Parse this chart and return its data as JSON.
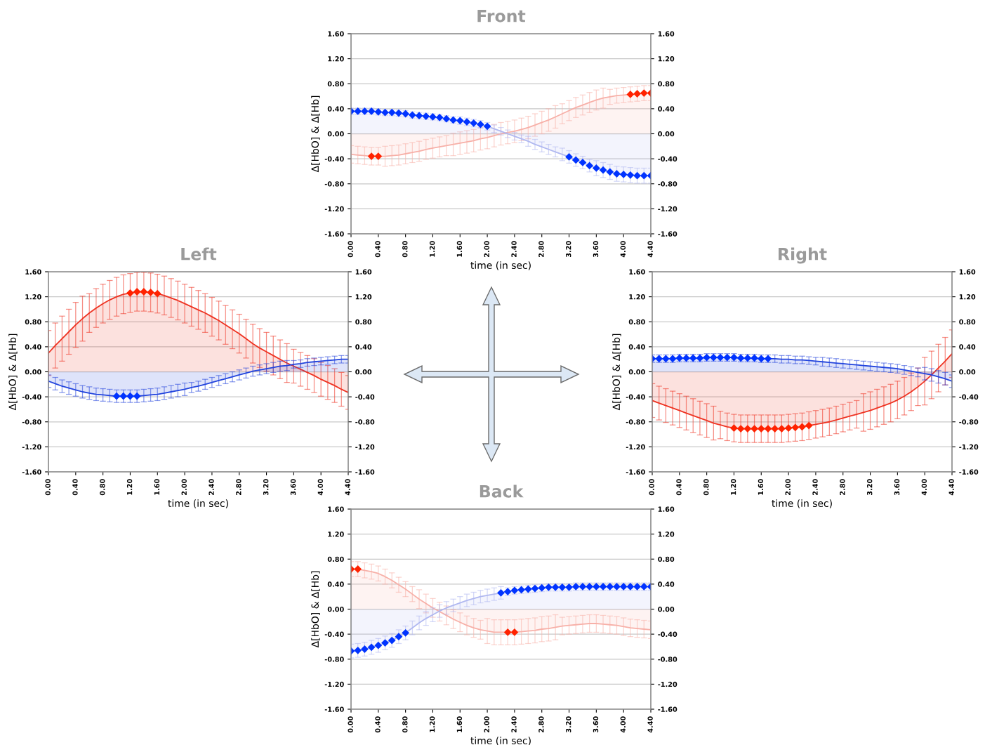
{
  "chart_data": [
    {
      "type": "line",
      "title": "Front",
      "xlabel": "time (in sec)",
      "ylabel": "Δ[HbO] & Δ[Hb]",
      "grid": "y",
      "xlim": [
        0,
        4.4
      ],
      "ylim": [
        -1.6,
        1.6
      ],
      "y2lim": [
        -1.6,
        1.6
      ],
      "xticks": [
        {
          "value": 0,
          "label": "0.00"
        },
        {
          "value": 0.4,
          "label": "0.40"
        },
        {
          "value": 0.8,
          "label": "0.80"
        },
        {
          "value": 1.2,
          "label": "1.20"
        },
        {
          "value": 1.6,
          "label": "1.60"
        },
        {
          "value": 2.0,
          "label": "2.00"
        },
        {
          "value": 2.4,
          "label": "2.40"
        },
        {
          "value": 2.8,
          "label": "2.80"
        },
        {
          "value": 3.2,
          "label": "3.20"
        },
        {
          "value": 3.6,
          "label": "3.60"
        },
        {
          "value": 4.0,
          "label": "4.00"
        },
        {
          "value": 4.4,
          "label": "4.40"
        }
      ],
      "yticks": [
        {
          "value": -1.6,
          "label": "-1.60"
        },
        {
          "value": -1.2,
          "label": "-1.20"
        },
        {
          "value": -0.8,
          "label": "-0.80"
        },
        {
          "value": -0.4,
          "label": "-0.40"
        },
        {
          "value": 0,
          "label": "0.00"
        },
        {
          "value": 0.4,
          "label": "0.40"
        },
        {
          "value": 0.8,
          "label": "0.80"
        },
        {
          "value": 1.2,
          "label": "1.20"
        },
        {
          "value": 1.6,
          "label": "1.60"
        }
      ],
      "y2ticks": [
        {
          "value": -1.6,
          "label": "-1.60"
        },
        {
          "value": -1.2,
          "label": "-1.20"
        },
        {
          "value": -0.8,
          "label": "-0.80"
        },
        {
          "value": -0.4,
          "label": "-0.40"
        },
        {
          "value": 0,
          "label": "0.00"
        },
        {
          "value": 0.4,
          "label": "0.40"
        },
        {
          "value": 0.8,
          "label": "0.80"
        },
        {
          "value": 1.2,
          "label": "1.20"
        },
        {
          "value": 1.6,
          "label": "1.60"
        }
      ],
      "x": [
        0,
        0.1,
        0.2,
        0.3,
        0.4,
        0.5,
        0.6,
        0.7,
        0.8,
        0.9,
        1.0,
        1.1,
        1.2,
        1.3,
        1.4,
        1.5,
        1.6,
        1.7,
        1.8,
        1.9,
        2.0,
        2.1,
        2.2,
        2.3,
        2.4,
        2.5,
        2.6,
        2.7,
        2.8,
        2.9,
        3.0,
        3.1,
        3.2,
        3.3,
        3.4,
        3.5,
        3.6,
        3.7,
        3.8,
        3.9,
        4.0,
        4.1,
        4.2,
        4.3,
        4.4
      ],
      "series": [
        {
          "type": "area",
          "color": "#f7b0a8",
          "values": [
            -0.33,
            -0.34,
            -0.35,
            -0.36,
            -0.36,
            -0.36,
            -0.35,
            -0.34,
            -0.32,
            -0.3,
            -0.28,
            -0.25,
            -0.23,
            -0.21,
            -0.19,
            -0.17,
            -0.15,
            -0.13,
            -0.11,
            -0.08,
            -0.06,
            -0.03,
            0.0,
            0.02,
            0.04,
            0.07,
            0.1,
            0.14,
            0.18,
            0.22,
            0.27,
            0.32,
            0.37,
            0.42,
            0.46,
            0.5,
            0.54,
            0.57,
            0.59,
            0.61,
            0.62,
            0.63,
            0.64,
            0.65,
            0.65
          ],
          "errors": [
            0.14,
            0.14,
            0.14,
            0.14,
            0.14,
            0.16,
            0.16,
            0.16,
            0.16,
            0.16,
            0.16,
            0.16,
            0.16,
            0.16,
            0.16,
            0.18,
            0.18,
            0.18,
            0.18,
            0.18,
            0.18,
            0.18,
            0.18,
            0.18,
            0.18,
            0.18,
            0.18,
            0.18,
            0.18,
            0.18,
            0.18,
            0.16,
            0.16,
            0.16,
            0.16,
            0.16,
            0.16,
            0.16,
            0.12,
            0.12,
            0.12,
            0.12,
            0.12,
            0.12,
            0.12
          ]
        },
        {
          "type": "area",
          "color": "#b0b8f0",
          "values": [
            0.36,
            0.36,
            0.36,
            0.36,
            0.35,
            0.34,
            0.34,
            0.33,
            0.32,
            0.3,
            0.29,
            0.28,
            0.27,
            0.26,
            0.24,
            0.22,
            0.21,
            0.19,
            0.17,
            0.15,
            0.12,
            0.08,
            0.04,
            0.0,
            -0.04,
            -0.08,
            -0.12,
            -0.17,
            -0.21,
            -0.25,
            -0.29,
            -0.33,
            -0.37,
            -0.42,
            -0.46,
            -0.51,
            -0.55,
            -0.58,
            -0.61,
            -0.64,
            -0.65,
            -0.66,
            -0.67,
            -0.67,
            -0.67
          ],
          "errors": [
            0.05,
            0.05,
            0.05,
            0.05,
            0.05,
            0.05,
            0.05,
            0.05,
            0.05,
            0.05,
            0.05,
            0.05,
            0.05,
            0.05,
            0.05,
            0.05,
            0.06,
            0.06,
            0.06,
            0.06,
            0.06,
            0.06,
            0.06,
            0.06,
            0.06,
            0.06,
            0.08,
            0.08,
            0.08,
            0.08,
            0.08,
            0.1,
            0.1,
            0.1,
            0.1,
            0.1,
            0.12,
            0.12,
            0.12,
            0.12,
            0.12,
            0.12,
            0.12,
            0.12,
            0.12
          ]
        },
        {
          "type": "scatter",
          "marker": "diamond",
          "color": "#ff2200",
          "x": [
            0.3,
            0.4,
            4.1,
            4.2,
            4.3,
            4.4
          ],
          "values": [
            -0.36,
            -0.36,
            0.63,
            0.64,
            0.65,
            0.65
          ]
        },
        {
          "type": "scatter",
          "marker": "diamond",
          "color": "#0033ff",
          "x": [
            0,
            0.1,
            0.2,
            0.3,
            0.4,
            0.5,
            0.6,
            0.7,
            0.8,
            0.9,
            1.0,
            1.1,
            1.2,
            1.3,
            1.4,
            1.5,
            1.6,
            1.7,
            1.8,
            1.9,
            2.0,
            3.2,
            3.3,
            3.4,
            3.5,
            3.6,
            3.7,
            3.8,
            3.9,
            4.0,
            4.1,
            4.2,
            4.3,
            4.4
          ],
          "values": [
            0.36,
            0.36,
            0.36,
            0.36,
            0.35,
            0.34,
            0.34,
            0.33,
            0.32,
            0.3,
            0.29,
            0.28,
            0.27,
            0.26,
            0.24,
            0.22,
            0.21,
            0.19,
            0.17,
            0.15,
            0.12,
            -0.37,
            -0.42,
            -0.46,
            -0.51,
            -0.55,
            -0.58,
            -0.61,
            -0.64,
            -0.65,
            -0.66,
            -0.67,
            -0.67,
            -0.67
          ]
        }
      ]
    },
    {
      "type": "line",
      "title": "Left",
      "xlabel": "time (in sec)",
      "ylabel": "Δ[HbO] & Δ[Hb]",
      "grid": "y",
      "xlim": [
        0,
        4.4
      ],
      "ylim": [
        -1.6,
        1.6
      ],
      "y2lim": [
        -1.6,
        1.6
      ],
      "xticks": [
        {
          "value": 0,
          "label": "0.00"
        },
        {
          "value": 0.4,
          "label": "0.40"
        },
        {
          "value": 0.8,
          "label": "0.80"
        },
        {
          "value": 1.2,
          "label": "1.20"
        },
        {
          "value": 1.6,
          "label": "1.60"
        },
        {
          "value": 2.0,
          "label": "2.00"
        },
        {
          "value": 2.4,
          "label": "2.40"
        },
        {
          "value": 2.8,
          "label": "2.80"
        },
        {
          "value": 3.2,
          "label": "3.20"
        },
        {
          "value": 3.6,
          "label": "3.60"
        },
        {
          "value": 4.0,
          "label": "4.00"
        },
        {
          "value": 4.4,
          "label": "4.40"
        }
      ],
      "yticks": [
        {
          "value": -1.6,
          "label": "-1.60"
        },
        {
          "value": -1.2,
          "label": "-1.20"
        },
        {
          "value": -0.8,
          "label": "-0.80"
        },
        {
          "value": -0.4,
          "label": "-0.40"
        },
        {
          "value": 0,
          "label": "0.00"
        },
        {
          "value": 0.4,
          "label": "0.40"
        },
        {
          "value": 0.8,
          "label": "0.80"
        },
        {
          "value": 1.2,
          "label": "1.20"
        },
        {
          "value": 1.6,
          "label": "1.60"
        }
      ],
      "y2ticks": [
        {
          "value": -1.6,
          "label": "-1.60"
        },
        {
          "value": -1.2,
          "label": "-1.20"
        },
        {
          "value": -0.8,
          "label": "-0.80"
        },
        {
          "value": -0.4,
          "label": "-0.40"
        },
        {
          "value": 0,
          "label": "0.00"
        },
        {
          "value": 0.4,
          "label": "0.40"
        },
        {
          "value": 0.8,
          "label": "0.80"
        },
        {
          "value": 1.2,
          "label": "1.20"
        },
        {
          "value": 1.6,
          "label": "1.60"
        }
      ],
      "x": [
        0,
        0.1,
        0.2,
        0.3,
        0.4,
        0.5,
        0.6,
        0.7,
        0.8,
        0.9,
        1.0,
        1.1,
        1.2,
        1.3,
        1.4,
        1.5,
        1.6,
        1.7,
        1.8,
        1.9,
        2.0,
        2.1,
        2.2,
        2.3,
        2.4,
        2.5,
        2.6,
        2.7,
        2.8,
        2.9,
        3.0,
        3.1,
        3.2,
        3.3,
        3.4,
        3.5,
        3.6,
        3.7,
        3.8,
        3.9,
        4.0,
        4.1,
        4.2,
        4.3,
        4.4
      ],
      "series": [
        {
          "type": "area",
          "color": "#ee3322",
          "values": [
            0.3,
            0.42,
            0.53,
            0.64,
            0.75,
            0.85,
            0.94,
            1.02,
            1.09,
            1.15,
            1.2,
            1.24,
            1.26,
            1.28,
            1.28,
            1.27,
            1.25,
            1.22,
            1.18,
            1.14,
            1.09,
            1.04,
            0.99,
            0.94,
            0.88,
            0.82,
            0.75,
            0.68,
            0.61,
            0.53,
            0.45,
            0.38,
            0.32,
            0.26,
            0.2,
            0.14,
            0.09,
            0.04,
            -0.01,
            -0.06,
            -0.12,
            -0.17,
            -0.22,
            -0.28,
            -0.33
          ],
          "errors": [
            0.36,
            0.36,
            0.36,
            0.36,
            0.36,
            0.36,
            0.31,
            0.31,
            0.31,
            0.31,
            0.31,
            0.31,
            0.31,
            0.31,
            0.31,
            0.31,
            0.31,
            0.31,
            0.31,
            0.31,
            0.31,
            0.31,
            0.31,
            0.31,
            0.31,
            0.31,
            0.31,
            0.31,
            0.31,
            0.31,
            0.31,
            0.31,
            0.31,
            0.31,
            0.31,
            0.31,
            0.27,
            0.27,
            0.27,
            0.27,
            0.27,
            0.27,
            0.27,
            0.27,
            0.27
          ]
        },
        {
          "type": "area",
          "color": "#2244dd",
          "values": [
            -0.15,
            -0.19,
            -0.23,
            -0.26,
            -0.29,
            -0.32,
            -0.34,
            -0.36,
            -0.37,
            -0.38,
            -0.39,
            -0.39,
            -0.39,
            -0.39,
            -0.38,
            -0.37,
            -0.36,
            -0.34,
            -0.32,
            -0.3,
            -0.28,
            -0.25,
            -0.23,
            -0.2,
            -0.17,
            -0.14,
            -0.11,
            -0.08,
            -0.05,
            -0.02,
            0.01,
            0.03,
            0.05,
            0.07,
            0.09,
            0.1,
            0.12,
            0.13,
            0.15,
            0.16,
            0.17,
            0.18,
            0.19,
            0.2,
            0.2
          ],
          "errors": [
            0.1,
            0.1,
            0.1,
            0.1,
            0.1,
            0.1,
            0.1,
            0.1,
            0.1,
            0.1,
            0.1,
            0.1,
            0.1,
            0.1,
            0.1,
            0.1,
            0.1,
            0.1,
            0.1,
            0.1,
            0.1,
            0.08,
            0.08,
            0.08,
            0.08,
            0.08,
            0.08,
            0.08,
            0.08,
            0.08,
            0.08,
            0.08,
            0.08,
            0.08,
            0.08,
            0.08,
            0.06,
            0.06,
            0.06,
            0.06,
            0.06,
            0.06,
            0.06,
            0.06,
            0.06
          ]
        },
        {
          "type": "scatter",
          "marker": "diamond",
          "color": "#ff2200",
          "x": [
            1.2,
            1.3,
            1.4,
            1.5,
            1.6
          ],
          "values": [
            1.26,
            1.28,
            1.28,
            1.27,
            1.25
          ]
        },
        {
          "type": "scatter",
          "marker": "diamond",
          "color": "#0033ff",
          "x": [
            1.0,
            1.1,
            1.2,
            1.3
          ],
          "values": [
            -0.39,
            -0.39,
            -0.39,
            -0.39
          ]
        }
      ]
    },
    {
      "type": "line",
      "title": "Right",
      "xlabel": "time (in sec)",
      "ylabel": "Δ[HbO] & Δ[Hb]",
      "grid": "y",
      "xlim": [
        0,
        4.4
      ],
      "ylim": [
        -1.6,
        1.6
      ],
      "y2lim": [
        -1.6,
        1.6
      ],
      "xticks": [
        {
          "value": 0,
          "label": "0.00"
        },
        {
          "value": 0.4,
          "label": "0.40"
        },
        {
          "value": 0.8,
          "label": "0.80"
        },
        {
          "value": 1.2,
          "label": "1.20"
        },
        {
          "value": 1.6,
          "label": "1.60"
        },
        {
          "value": 2.0,
          "label": "2.00"
        },
        {
          "value": 2.4,
          "label": "2.40"
        },
        {
          "value": 2.8,
          "label": "2.80"
        },
        {
          "value": 3.2,
          "label": "3.20"
        },
        {
          "value": 3.6,
          "label": "3.60"
        },
        {
          "value": 4.0,
          "label": "4.00"
        },
        {
          "value": 4.4,
          "label": "4.40"
        }
      ],
      "yticks": [
        {
          "value": -1.6,
          "label": "-1.60"
        },
        {
          "value": -1.2,
          "label": "-1.20"
        },
        {
          "value": -0.8,
          "label": "-0.80"
        },
        {
          "value": -0.4,
          "label": "-0.40"
        },
        {
          "value": 0,
          "label": "0.00"
        },
        {
          "value": 0.4,
          "label": "0.40"
        },
        {
          "value": 0.8,
          "label": "0.80"
        },
        {
          "value": 1.2,
          "label": "1.20"
        },
        {
          "value": 1.6,
          "label": "1.60"
        }
      ],
      "y2ticks": [
        {
          "value": -1.6,
          "label": "-1.60"
        },
        {
          "value": -1.2,
          "label": "-1.20"
        },
        {
          "value": -0.8,
          "label": "-0.80"
        },
        {
          "value": -0.4,
          "label": "-0.40"
        },
        {
          "value": 0,
          "label": "0.00"
        },
        {
          "value": 0.4,
          "label": "0.40"
        },
        {
          "value": 0.8,
          "label": "0.80"
        },
        {
          "value": 1.2,
          "label": "1.20"
        },
        {
          "value": 1.6,
          "label": "1.60"
        }
      ],
      "x": [
        0,
        0.1,
        0.2,
        0.3,
        0.4,
        0.5,
        0.6,
        0.7,
        0.8,
        0.9,
        1.0,
        1.1,
        1.2,
        1.3,
        1.4,
        1.5,
        1.6,
        1.7,
        1.8,
        1.9,
        2.0,
        2.1,
        2.2,
        2.3,
        2.4,
        2.5,
        2.6,
        2.7,
        2.8,
        2.9,
        3.0,
        3.1,
        3.2,
        3.3,
        3.4,
        3.5,
        3.6,
        3.7,
        3.8,
        3.9,
        4.0,
        4.1,
        4.2,
        4.3,
        4.4
      ],
      "series": [
        {
          "type": "area",
          "color": "#ee3322",
          "values": [
            -0.46,
            -0.5,
            -0.54,
            -0.58,
            -0.62,
            -0.66,
            -0.7,
            -0.74,
            -0.78,
            -0.82,
            -0.85,
            -0.88,
            -0.9,
            -0.91,
            -0.91,
            -0.91,
            -0.91,
            -0.91,
            -0.91,
            -0.91,
            -0.9,
            -0.89,
            -0.88,
            -0.86,
            -0.84,
            -0.82,
            -0.8,
            -0.77,
            -0.74,
            -0.71,
            -0.68,
            -0.65,
            -0.62,
            -0.58,
            -0.54,
            -0.5,
            -0.45,
            -0.39,
            -0.32,
            -0.24,
            -0.15,
            -0.05,
            0.06,
            0.17,
            0.29
          ],
          "errors": [
            0.27,
            0.27,
            0.27,
            0.27,
            0.27,
            0.27,
            0.27,
            0.27,
            0.27,
            0.27,
            0.22,
            0.22,
            0.22,
            0.22,
            0.22,
            0.22,
            0.22,
            0.22,
            0.22,
            0.22,
            0.22,
            0.22,
            0.22,
            0.22,
            0.22,
            0.22,
            0.22,
            0.22,
            0.22,
            0.22,
            0.22,
            0.3,
            0.3,
            0.3,
            0.3,
            0.3,
            0.3,
            0.3,
            0.3,
            0.3,
            0.38,
            0.38,
            0.38,
            0.38,
            0.38
          ]
        },
        {
          "type": "area",
          "color": "#2244dd",
          "values": [
            0.21,
            0.21,
            0.21,
            0.21,
            0.22,
            0.22,
            0.22,
            0.22,
            0.23,
            0.23,
            0.23,
            0.23,
            0.23,
            0.22,
            0.22,
            0.22,
            0.21,
            0.21,
            0.21,
            0.2,
            0.2,
            0.19,
            0.19,
            0.18,
            0.17,
            0.16,
            0.15,
            0.14,
            0.13,
            0.12,
            0.11,
            0.1,
            0.09,
            0.08,
            0.07,
            0.06,
            0.05,
            0.03,
            0.01,
            -0.01,
            -0.03,
            -0.05,
            -0.08,
            -0.11,
            -0.15
          ],
          "errors": [
            0.06,
            0.06,
            0.06,
            0.06,
            0.06,
            0.06,
            0.06,
            0.06,
            0.06,
            0.06,
            0.06,
            0.06,
            0.06,
            0.06,
            0.06,
            0.06,
            0.06,
            0.06,
            0.06,
            0.06,
            0.06,
            0.06,
            0.06,
            0.06,
            0.06,
            0.07,
            0.07,
            0.07,
            0.07,
            0.07,
            0.07,
            0.07,
            0.07,
            0.07,
            0.07,
            0.07,
            0.07,
            0.07,
            0.07,
            0.07,
            0.1,
            0.1,
            0.1,
            0.1,
            0.1
          ]
        },
        {
          "type": "scatter",
          "marker": "diamond",
          "color": "#ff2200",
          "x": [
            1.2,
            1.3,
            1.4,
            1.5,
            1.6,
            1.7,
            1.8,
            1.9,
            2.0,
            2.1,
            2.2,
            2.3
          ],
          "values": [
            -0.9,
            -0.91,
            -0.91,
            -0.91,
            -0.91,
            -0.91,
            -0.91,
            -0.91,
            -0.9,
            -0.89,
            -0.88,
            -0.86
          ]
        },
        {
          "type": "scatter",
          "marker": "diamond",
          "color": "#0033ff",
          "x": [
            0,
            0.1,
            0.2,
            0.3,
            0.4,
            0.5,
            0.6,
            0.7,
            0.8,
            0.9,
            1.0,
            1.1,
            1.2,
            1.3,
            1.4,
            1.5,
            1.6,
            1.7
          ],
          "values": [
            0.21,
            0.21,
            0.21,
            0.21,
            0.22,
            0.22,
            0.22,
            0.22,
            0.23,
            0.23,
            0.23,
            0.23,
            0.23,
            0.22,
            0.22,
            0.22,
            0.21,
            0.21
          ]
        }
      ]
    },
    {
      "type": "line",
      "title": "Back",
      "xlabel": "time (in sec)",
      "ylabel": "Δ[HbO] & Δ[Hb]",
      "grid": "y",
      "xlim": [
        0,
        4.4
      ],
      "ylim": [
        -1.6,
        1.6
      ],
      "y2lim": [
        -1.6,
        1.6
      ],
      "xticks": [
        {
          "value": 0,
          "label": "0.00"
        },
        {
          "value": 0.4,
          "label": "0.40"
        },
        {
          "value": 0.8,
          "label": "0.80"
        },
        {
          "value": 1.2,
          "label": "1.20"
        },
        {
          "value": 1.6,
          "label": "1.60"
        },
        {
          "value": 2.0,
          "label": "2.00"
        },
        {
          "value": 2.4,
          "label": "2.40"
        },
        {
          "value": 2.8,
          "label": "2.80"
        },
        {
          "value": 3.2,
          "label": "3.20"
        },
        {
          "value": 3.6,
          "label": "3.60"
        },
        {
          "value": 4.0,
          "label": "4.00"
        },
        {
          "value": 4.4,
          "label": "4.40"
        }
      ],
      "yticks": [
        {
          "value": -1.6,
          "label": "-1.60"
        },
        {
          "value": -1.2,
          "label": "-1.20"
        },
        {
          "value": -0.8,
          "label": "-0.80"
        },
        {
          "value": -0.4,
          "label": "-0.40"
        },
        {
          "value": 0,
          "label": "0.00"
        },
        {
          "value": 0.4,
          "label": "0.40"
        },
        {
          "value": 0.8,
          "label": "0.80"
        },
        {
          "value": 1.2,
          "label": "1.20"
        },
        {
          "value": 1.6,
          "label": "1.60"
        }
      ],
      "y2ticks": [
        {
          "value": -1.6,
          "label": "-1.60"
        },
        {
          "value": -1.2,
          "label": "-1.20"
        },
        {
          "value": -0.8,
          "label": "-0.80"
        },
        {
          "value": -0.4,
          "label": "-0.40"
        },
        {
          "value": 0,
          "label": "0.00"
        },
        {
          "value": 0.4,
          "label": "0.40"
        },
        {
          "value": 0.8,
          "label": "0.80"
        },
        {
          "value": 1.2,
          "label": "1.20"
        },
        {
          "value": 1.6,
          "label": "1.60"
        }
      ],
      "x": [
        0,
        0.1,
        0.2,
        0.3,
        0.4,
        0.5,
        0.6,
        0.7,
        0.8,
        0.9,
        1.0,
        1.1,
        1.2,
        1.3,
        1.4,
        1.5,
        1.6,
        1.7,
        1.8,
        1.9,
        2.0,
        2.1,
        2.2,
        2.3,
        2.4,
        2.5,
        2.6,
        2.7,
        2.8,
        2.9,
        3.0,
        3.1,
        3.2,
        3.3,
        3.4,
        3.5,
        3.6,
        3.7,
        3.8,
        3.9,
        4.0,
        4.1,
        4.2,
        4.3,
        4.4
      ],
      "series": [
        {
          "type": "area",
          "color": "#f7b0a8",
          "values": [
            0.64,
            0.64,
            0.62,
            0.6,
            0.57,
            0.52,
            0.46,
            0.39,
            0.32,
            0.24,
            0.16,
            0.09,
            0.02,
            -0.04,
            -0.1,
            -0.16,
            -0.21,
            -0.26,
            -0.3,
            -0.33,
            -0.35,
            -0.37,
            -0.37,
            -0.37,
            -0.37,
            -0.36,
            -0.35,
            -0.34,
            -0.32,
            -0.31,
            -0.29,
            -0.27,
            -0.26,
            -0.25,
            -0.24,
            -0.23,
            -0.23,
            -0.24,
            -0.25,
            -0.26,
            -0.28,
            -0.3,
            -0.31,
            -0.32,
            -0.33
          ],
          "errors": [
            0.12,
            0.12,
            0.12,
            0.12,
            0.12,
            0.12,
            0.12,
            0.12,
            0.12,
            0.12,
            0.15,
            0.15,
            0.15,
            0.15,
            0.15,
            0.15,
            0.15,
            0.15,
            0.15,
            0.15,
            0.2,
            0.2,
            0.2,
            0.2,
            0.2,
            0.2,
            0.2,
            0.2,
            0.2,
            0.2,
            0.2,
            0.14,
            0.14,
            0.14,
            0.14,
            0.14,
            0.14,
            0.14,
            0.14,
            0.14,
            0.14,
            0.14,
            0.14,
            0.14,
            0.14
          ]
        },
        {
          "type": "area",
          "color": "#b0b8f0",
          "values": [
            -0.67,
            -0.66,
            -0.64,
            -0.61,
            -0.58,
            -0.54,
            -0.5,
            -0.44,
            -0.38,
            -0.3,
            -0.22,
            -0.15,
            -0.09,
            -0.03,
            0.02,
            0.06,
            0.1,
            0.14,
            0.17,
            0.2,
            0.22,
            0.24,
            0.26,
            0.28,
            0.3,
            0.31,
            0.32,
            0.33,
            0.34,
            0.35,
            0.35,
            0.35,
            0.35,
            0.36,
            0.36,
            0.36,
            0.36,
            0.36,
            0.36,
            0.36,
            0.36,
            0.36,
            0.36,
            0.36,
            0.36
          ],
          "errors": [
            0.11,
            0.11,
            0.11,
            0.11,
            0.11,
            0.11,
            0.11,
            0.11,
            0.11,
            0.11,
            0.11,
            0.11,
            0.11,
            0.1,
            0.1,
            0.1,
            0.1,
            0.1,
            0.1,
            0.1,
            0.1,
            0.1,
            0.1,
            0.06,
            0.06,
            0.06,
            0.06,
            0.06,
            0.06,
            0.06,
            0.06,
            0.06,
            0.06,
            0.06,
            0.06,
            0.06,
            0.06,
            0.06,
            0.06,
            0.06,
            0.06,
            0.06,
            0.06,
            0.06,
            0.06
          ]
        },
        {
          "type": "scatter",
          "marker": "diamond",
          "color": "#ff2200",
          "x": [
            0,
            0.1,
            2.3,
            2.4
          ],
          "values": [
            0.64,
            0.64,
            -0.37,
            -0.37
          ]
        },
        {
          "type": "scatter",
          "marker": "diamond",
          "color": "#0033ff",
          "x": [
            0,
            0.1,
            0.2,
            0.3,
            0.4,
            0.5,
            0.6,
            0.7,
            0.8,
            2.2,
            2.3,
            2.4,
            2.5,
            2.6,
            2.7,
            2.8,
            2.9,
            3.0,
            3.1,
            3.2,
            3.3,
            3.4,
            3.5,
            3.6,
            3.7,
            3.8,
            3.9,
            4.0,
            4.1,
            4.2,
            4.3,
            4.4
          ],
          "values": [
            -0.67,
            -0.66,
            -0.64,
            -0.61,
            -0.58,
            -0.54,
            -0.5,
            -0.44,
            -0.38,
            0.26,
            0.28,
            0.3,
            0.31,
            0.32,
            0.33,
            0.34,
            0.35,
            0.35,
            0.35,
            0.35,
            0.36,
            0.36,
            0.36,
            0.36,
            0.36,
            0.36,
            0.36,
            0.36,
            0.36,
            0.36,
            0.36,
            0.36
          ]
        }
      ]
    }
  ]
}
